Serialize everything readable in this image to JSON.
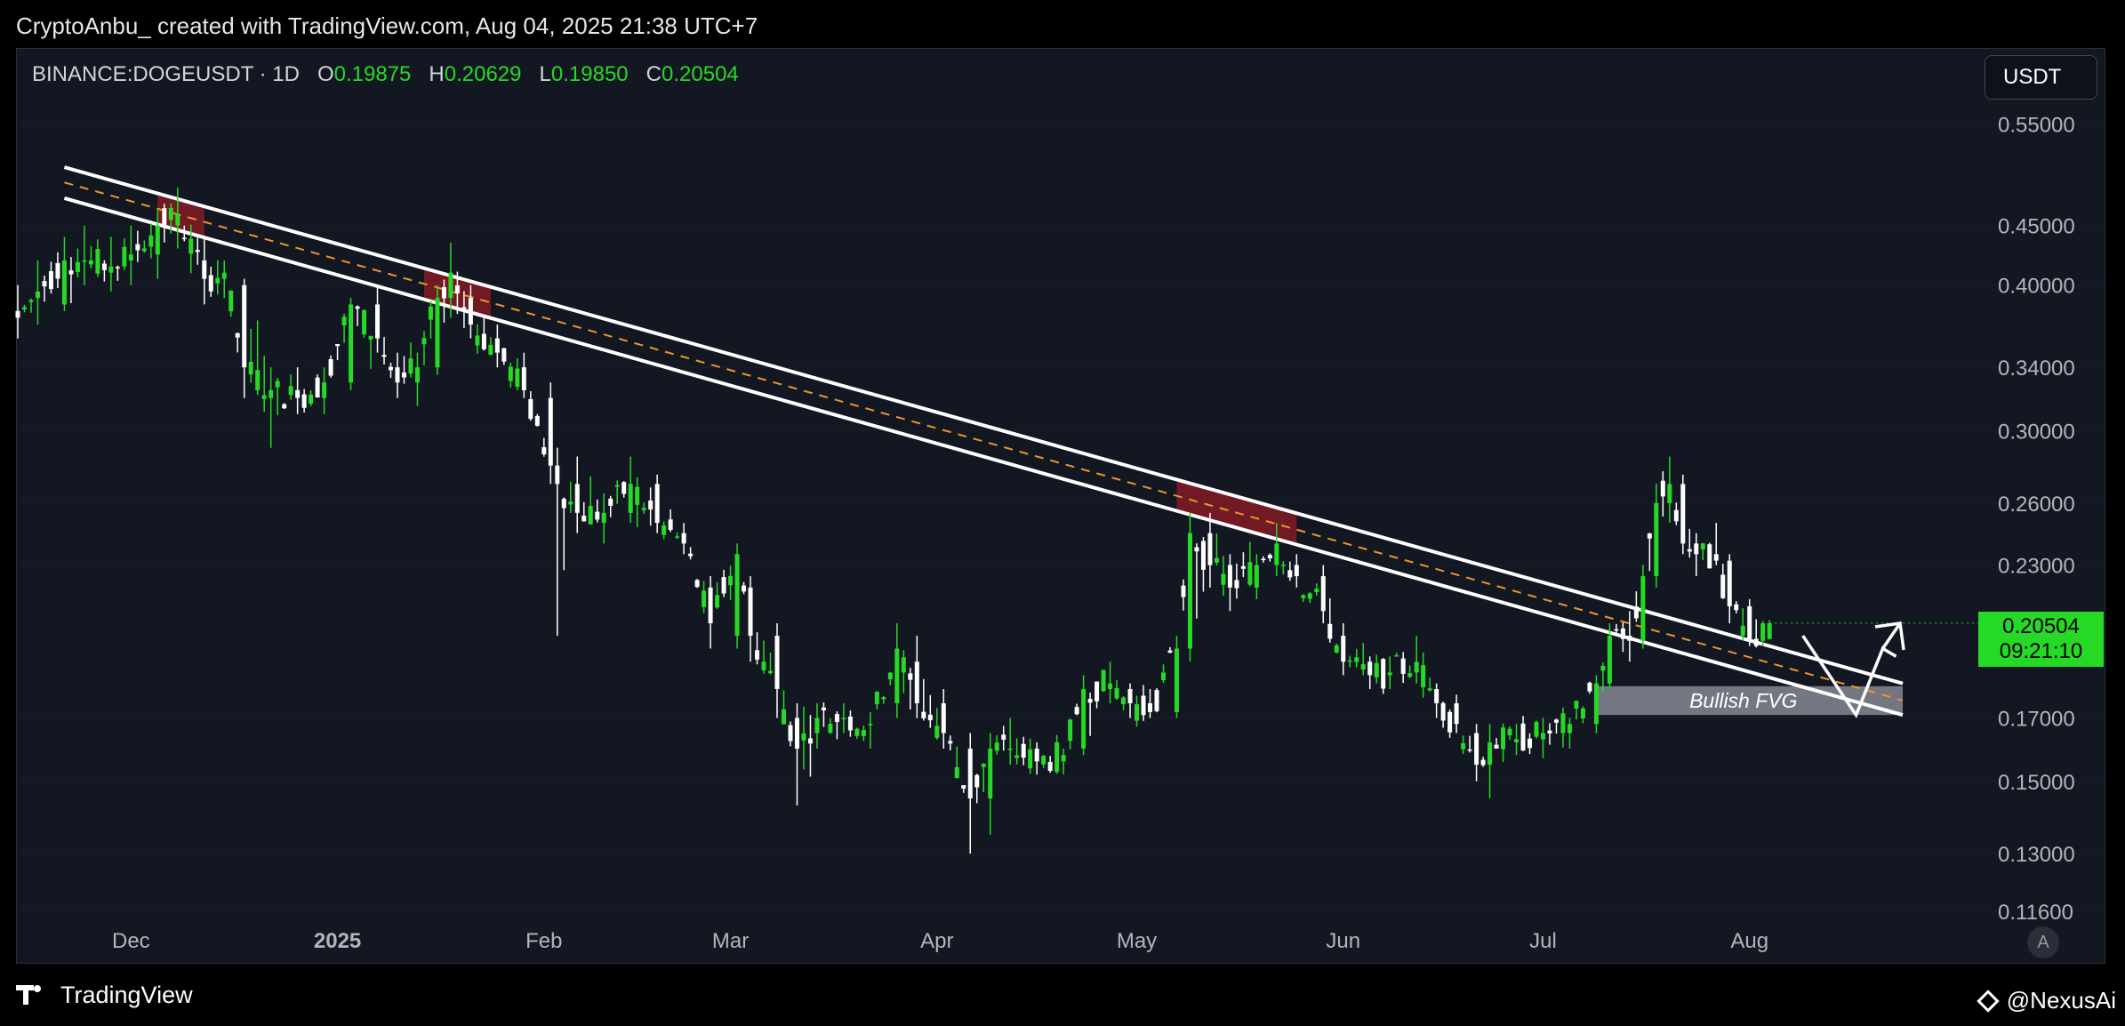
{
  "header": {
    "text": "CryptoAnbu_ created with TradingView.com, Aug 04, 2025 21:38 UTC+7"
  },
  "symbol": {
    "name": "BINANCE:DOGEUSDT · 1D",
    "o_label": "O",
    "o_value": "0.19875",
    "h_label": "H",
    "h_value": "0.20629",
    "l_label": "L",
    "l_value": "0.19850",
    "c_label": "C",
    "c_value": "0.20504"
  },
  "currency_button": "USDT",
  "last_price": {
    "price": "0.20504",
    "countdown": "09:21:10"
  },
  "auto_button": "A",
  "footer": {
    "logo_text": "TradingView",
    "credit": "@NexusAi"
  },
  "colors": {
    "up": "#26d926",
    "down": "#ffffff",
    "background": "#131722",
    "zone": "#8b1c24",
    "fvg": "#9598a1",
    "midline": "#f0932b"
  },
  "chart_data": {
    "type": "candlestick",
    "symbol": "BINANCE:DOGEUSDT",
    "interval": "1D",
    "y_scale": "log",
    "ylim": [
      0.116,
      0.6
    ],
    "y_ticks": [
      "0.55000",
      "0.45000",
      "0.40000",
      "0.34000",
      "0.30000",
      "0.26000",
      "0.23000",
      "0.17000",
      "0.15000",
      "0.13000",
      "0.11600"
    ],
    "x_ticks": [
      {
        "date": "2024-12-01",
        "label": "Dec",
        "bold": false
      },
      {
        "date": "2025-01-01",
        "label": "2025",
        "bold": true
      },
      {
        "date": "2025-02-01",
        "label": "Feb",
        "bold": false
      },
      {
        "date": "2025-03-01",
        "label": "Mar",
        "bold": false
      },
      {
        "date": "2025-04-01",
        "label": "Apr",
        "bold": false
      },
      {
        "date": "2025-05-01",
        "label": "May",
        "bold": false
      },
      {
        "date": "2025-06-01",
        "label": "Jun",
        "bold": false
      },
      {
        "date": "2025-07-01",
        "label": "Jul",
        "bold": false
      },
      {
        "date": "2025-08-01",
        "label": "Aug",
        "bold": false
      }
    ],
    "xlim": [
      "2024-11-14",
      "2025-08-26"
    ],
    "ohlc_anchors": [
      [
        "2024-11-14",
        0.38,
        0.4,
        0.36,
        0.375
      ],
      [
        "2024-11-17",
        0.39,
        0.42,
        0.37,
        0.395
      ],
      [
        "2024-11-21",
        0.385,
        0.44,
        0.38,
        0.42
      ],
      [
        "2024-11-24",
        0.42,
        0.45,
        0.4,
        0.42
      ],
      [
        "2024-11-28",
        0.41,
        0.44,
        0.395,
        0.415
      ],
      [
        "2024-12-01",
        0.42,
        0.45,
        0.4,
        0.425
      ],
      [
        "2024-12-05",
        0.425,
        0.465,
        0.405,
        0.45
      ],
      [
        "2024-12-08",
        0.45,
        0.485,
        0.43,
        0.46
      ],
      [
        "2024-12-12",
        0.42,
        0.44,
        0.385,
        0.405
      ],
      [
        "2024-12-15",
        0.405,
        0.42,
        0.39,
        0.41
      ],
      [
        "2024-12-18",
        0.4,
        0.405,
        0.32,
        0.34
      ],
      [
        "2024-12-22",
        0.32,
        0.34,
        0.29,
        0.325
      ],
      [
        "2024-12-26",
        0.325,
        0.34,
        0.31,
        0.32
      ],
      [
        "2024-12-30",
        0.32,
        0.34,
        0.31,
        0.33
      ],
      [
        "2025-01-03",
        0.33,
        0.39,
        0.325,
        0.385
      ],
      [
        "2025-01-07",
        0.385,
        0.4,
        0.35,
        0.36
      ],
      [
        "2025-01-10",
        0.34,
        0.35,
        0.32,
        0.33
      ],
      [
        "2025-01-13",
        0.33,
        0.35,
        0.315,
        0.34
      ],
      [
        "2025-01-16",
        0.34,
        0.4,
        0.335,
        0.39
      ],
      [
        "2025-01-18",
        0.39,
        0.435,
        0.375,
        0.41
      ],
      [
        "2025-01-21",
        0.39,
        0.4,
        0.36,
        0.37
      ],
      [
        "2025-01-25",
        0.36,
        0.37,
        0.34,
        0.35
      ],
      [
        "2025-01-29",
        0.34,
        0.35,
        0.32,
        0.325
      ],
      [
        "2025-02-02",
        0.32,
        0.33,
        0.27,
        0.28
      ],
      [
        "2025-02-03",
        0.28,
        0.29,
        0.2,
        0.27
      ],
      [
        "2025-02-06",
        0.27,
        0.285,
        0.245,
        0.255
      ],
      [
        "2025-02-10",
        0.25,
        0.265,
        0.24,
        0.255
      ],
      [
        "2025-02-14",
        0.255,
        0.285,
        0.25,
        0.27
      ],
      [
        "2025-02-18",
        0.27,
        0.275,
        0.245,
        0.25
      ],
      [
        "2025-02-22",
        0.245,
        0.25,
        0.235,
        0.24
      ],
      [
        "2025-02-26",
        0.22,
        0.225,
        0.195,
        0.205
      ],
      [
        "2025-03-02",
        0.2,
        0.24,
        0.195,
        0.235
      ],
      [
        "2025-03-04",
        0.22,
        0.225,
        0.19,
        0.2
      ],
      [
        "2025-03-08",
        0.2,
        0.205,
        0.17,
        0.18
      ],
      [
        "2025-03-11",
        0.17,
        0.175,
        0.143,
        0.16
      ],
      [
        "2025-03-14",
        0.165,
        0.175,
        0.16,
        0.17
      ],
      [
        "2025-03-18",
        0.17,
        0.175,
        0.165,
        0.17
      ],
      [
        "2025-03-22",
        0.168,
        0.172,
        0.16,
        0.168
      ],
      [
        "2025-03-26",
        0.175,
        0.205,
        0.17,
        0.195
      ],
      [
        "2025-03-29",
        0.19,
        0.2,
        0.17,
        0.175
      ],
      [
        "2025-04-02",
        0.175,
        0.18,
        0.16,
        0.165
      ],
      [
        "2025-04-06",
        0.16,
        0.165,
        0.13,
        0.145
      ],
      [
        "2025-04-09",
        0.145,
        0.165,
        0.135,
        0.16
      ],
      [
        "2025-04-12",
        0.16,
        0.17,
        0.155,
        0.16
      ],
      [
        "2025-04-16",
        0.16,
        0.162,
        0.152,
        0.156
      ],
      [
        "2025-04-20",
        0.156,
        0.16,
        0.152,
        0.158
      ],
      [
        "2025-04-23",
        0.16,
        0.185,
        0.158,
        0.18
      ],
      [
        "2025-04-27",
        0.18,
        0.19,
        0.175,
        0.182
      ],
      [
        "2025-04-30",
        0.18,
        0.182,
        0.17,
        0.175
      ],
      [
        "2025-05-03",
        0.175,
        0.18,
        0.17,
        0.172
      ],
      [
        "2025-05-07",
        0.172,
        0.2,
        0.17,
        0.195
      ],
      [
        "2025-05-09",
        0.195,
        0.255,
        0.19,
        0.245
      ],
      [
        "2025-05-12",
        0.245,
        0.255,
        0.22,
        0.23
      ],
      [
        "2025-05-15",
        0.23,
        0.235,
        0.21,
        0.22
      ],
      [
        "2025-05-19",
        0.22,
        0.235,
        0.215,
        0.23
      ],
      [
        "2025-05-22",
        0.23,
        0.25,
        0.225,
        0.24
      ],
      [
        "2025-05-25",
        0.23,
        0.235,
        0.22,
        0.225
      ],
      [
        "2025-05-29",
        0.225,
        0.23,
        0.205,
        0.21
      ],
      [
        "2025-06-01",
        0.2,
        0.205,
        0.185,
        0.19
      ],
      [
        "2025-06-05",
        0.19,
        0.192,
        0.18,
        0.185
      ],
      [
        "2025-06-08",
        0.185,
        0.192,
        0.18,
        0.186
      ],
      [
        "2025-06-12",
        0.186,
        0.2,
        0.182,
        0.19
      ],
      [
        "2025-06-15",
        0.18,
        0.182,
        0.17,
        0.175
      ],
      [
        "2025-06-18",
        0.175,
        0.178,
        0.165,
        0.168
      ],
      [
        "2025-06-21",
        0.165,
        0.168,
        0.15,
        0.155
      ],
      [
        "2025-06-23",
        0.155,
        0.168,
        0.145,
        0.162
      ],
      [
        "2025-06-27",
        0.162,
        0.168,
        0.158,
        0.163
      ],
      [
        "2025-07-01",
        0.163,
        0.17,
        0.157,
        0.165
      ],
      [
        "2025-07-05",
        0.165,
        0.17,
        0.16,
        0.168
      ],
      [
        "2025-07-09",
        0.168,
        0.185,
        0.165,
        0.182
      ],
      [
        "2025-07-11",
        0.182,
        0.205,
        0.18,
        0.2
      ],
      [
        "2025-07-14",
        0.2,
        0.21,
        0.19,
        0.198
      ],
      [
        "2025-07-16",
        0.198,
        0.23,
        0.195,
        0.225
      ],
      [
        "2025-07-18",
        0.225,
        0.27,
        0.22,
        0.26
      ],
      [
        "2025-07-20",
        0.26,
        0.285,
        0.25,
        0.27
      ],
      [
        "2025-07-22",
        0.27,
        0.275,
        0.235,
        0.24
      ],
      [
        "2025-07-24",
        0.24,
        0.245,
        0.225,
        0.235
      ],
      [
        "2025-07-27",
        0.235,
        0.25,
        0.23,
        0.232
      ],
      [
        "2025-07-29",
        0.232,
        0.235,
        0.205,
        0.212
      ],
      [
        "2025-08-01",
        0.212,
        0.215,
        0.196,
        0.198
      ],
      [
        "2025-08-03",
        0.198,
        0.206,
        0.196,
        0.205
      ],
      [
        "2025-08-04",
        0.19875,
        0.20629,
        0.1985,
        0.20504
      ]
    ],
    "trendlines": {
      "upper": [
        [
          "2024-11-21",
          0.505
        ],
        [
          "2025-08-24",
          0.182
        ]
      ],
      "lower": [
        [
          "2024-11-21",
          0.475
        ],
        [
          "2025-08-24",
          0.171
        ]
      ],
      "midline": [
        [
          "2024-11-21",
          0.49
        ],
        [
          "2025-08-24",
          0.176
        ]
      ]
    },
    "rejection_zones": [
      {
        "start": "2024-12-05",
        "end": "2024-12-12"
      },
      {
        "start": "2025-01-14",
        "end": "2025-01-24"
      },
      {
        "start": "2025-05-07",
        "end": "2025-05-25"
      }
    ],
    "fvg_zone": {
      "label": "Bullish FVG",
      "start": "2025-07-09",
      "end": "2025-08-24",
      "low": 0.171,
      "high": 0.181
    },
    "projection_path": [
      [
        "2025-08-09",
        0.2
      ],
      [
        "2025-08-17",
        0.171
      ],
      [
        "2025-08-21",
        0.195
      ],
      [
        "2025-08-23",
        0.192
      ]
    ],
    "last_price_line": 0.20504
  }
}
